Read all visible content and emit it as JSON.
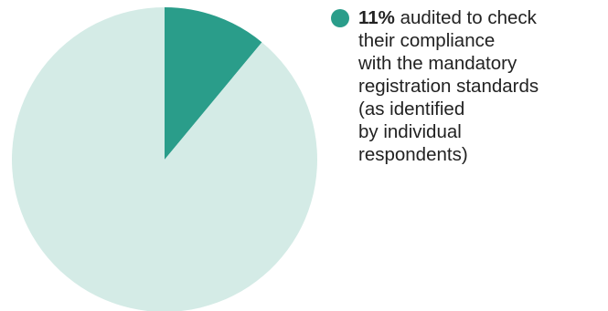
{
  "chart_data": {
    "type": "pie",
    "slices": [
      {
        "value": 11,
        "value_label": "11%",
        "label_lines": [
          "audited to check",
          "their compliance",
          "with the mandatory",
          "registration standards",
          "(as identified",
          "by individual",
          "respondents)"
        ],
        "color": "#2a9d8a"
      },
      {
        "value": 89,
        "color": "#d4ebe6"
      }
    ],
    "start_angle": "12 o'clock",
    "direction": "clockwise",
    "legend_position": "right"
  }
}
